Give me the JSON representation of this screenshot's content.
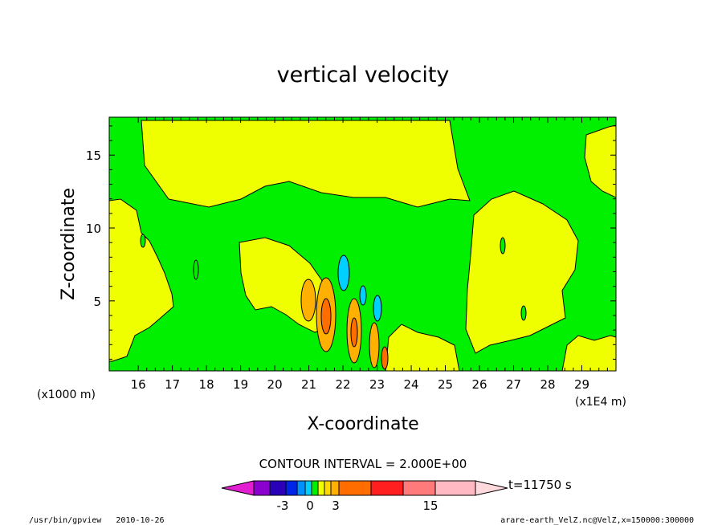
{
  "chart_data": {
    "type": "heatmap",
    "title": "vertical velocity",
    "xlabel": "X-coordinate",
    "ylabel": "Z-coordinate",
    "x_units": "(x1E4 m)",
    "y_units": "(x1000 m)",
    "x_ticks": [
      "16",
      "17",
      "18",
      "19",
      "20",
      "21",
      "22",
      "23",
      "24",
      "25",
      "26",
      "27",
      "28",
      "29"
    ],
    "y_ticks": [
      "5",
      "10",
      "15"
    ],
    "xlim": [
      15.15,
      30.0
    ],
    "ylim": [
      0.2,
      17.6
    ],
    "contour_interval_label": "CONTOUR INTERVAL = 2.000E+00",
    "time_label": "t=11750 s",
    "colorbar": {
      "colors": [
        "#e21fd0",
        "#8b00cf",
        "#2a00b9",
        "#0025e6",
        "#0091ff",
        "#00d0ff",
        "#00f000",
        "#f0ff00",
        "#ffd900",
        "#ffb000",
        "#ff6c00",
        "#ff1f1f",
        "#ff7a7a",
        "#ffb9c2",
        "#ffd9dc"
      ],
      "tick_labels": [
        "-3",
        "0",
        "3",
        "15"
      ]
    },
    "footer_left": "/usr/bin/gpview   2010-10-26",
    "footer_right": "arare-earth_VelZ.nc@VelZ,x=150000:300000",
    "regions": {
      "green": "#00f000",
      "yellow": "#f0ff00",
      "cyan": "#00d0ff",
      "orange_light": "#ffb000",
      "orange": "#ff6c00",
      "blue": "#0091ff"
    }
  }
}
